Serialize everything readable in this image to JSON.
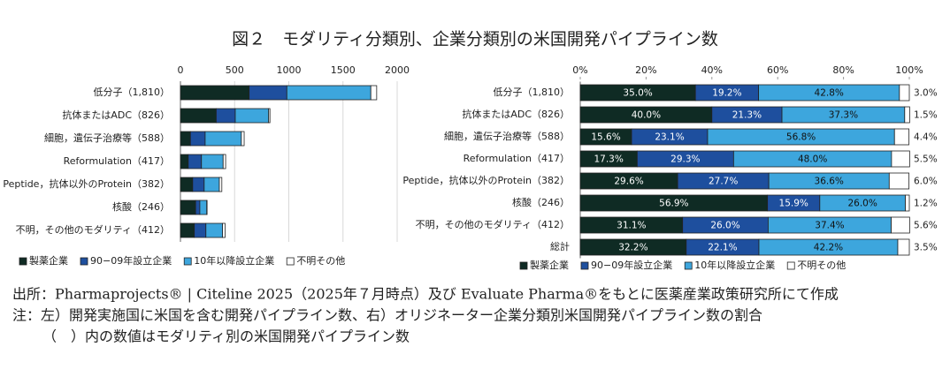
{
  "title": "図２　モダリティ分類別、企業分類別の米国開発パイプライン数",
  "source": "出所：Pharmaprojects® | Citeline 2025（2025年７月時点）及び Evaluate Pharma®をもとに医薬産業政策研究所にて作成",
  "notes": [
    "注：左）開発実施国に米国を含む開発パイプライン数、右）オリジネーター企業分類別米国開発パイプライン数の割合",
    "（　）内の数値はモダリティ別の米国開発パイプライン数"
  ],
  "chart_data": [
    {
      "type": "bar",
      "orientation": "horizontal",
      "stacked": true,
      "grid": true,
      "legend": "bottom",
      "categories": [
        "低分子（1,810）",
        "抗体またはADC（826）",
        "細胞，遺伝子治療等（588）",
        "Reformulation（417）",
        "Peptide，抗体以外のProtein（382）",
        "核酸（246）",
        "不明，その他のモダリティ（412）"
      ],
      "xlim": [
        0,
        2000
      ],
      "xticks": [
        0,
        500,
        1000,
        1500,
        2000
      ],
      "series": [
        {
          "name": "製薬企業",
          "color": "#0f2b24",
          "values": [
            634,
            330,
            92,
            72,
            113,
            140,
            128
          ]
        },
        {
          "name": "90−09年設立企業",
          "color": "#1e4f9e",
          "values": [
            348,
            176,
            136,
            122,
            106,
            39,
            107
          ]
        },
        {
          "name": "10年以降設立企業",
          "color": "#3da6dd",
          "values": [
            775,
            308,
            334,
            200,
            140,
            64,
            154
          ]
        },
        {
          "name": "不明その他",
          "color": "#ffffff",
          "values": [
            54,
            12,
            26,
            23,
            23,
            3,
            23
          ]
        }
      ]
    },
    {
      "type": "bar",
      "orientation": "horizontal",
      "stacked": true,
      "grid": false,
      "legend": "bottom",
      "categories": [
        "低分子（1,810）",
        "抗体またはADC（826）",
        "細胞，遺伝子治療等（588）",
        "Reformulation（417）",
        "Peptide，抗体以外のProtein（382）",
        "核酸（246）",
        "不明，その他のモダリティ（412）",
        "総計"
      ],
      "xlim": [
        0,
        100
      ],
      "xticks": [
        {
          "value": 0,
          "label": "0%"
        },
        {
          "value": 20,
          "label": "20%"
        },
        {
          "value": 40,
          "label": "40%"
        },
        {
          "value": 60,
          "label": "60%"
        },
        {
          "value": 80,
          "label": "80%"
        },
        {
          "value": 100,
          "label": "100%"
        }
      ],
      "series": [
        {
          "name": "製薬企業",
          "color": "#0f2b24",
          "values": [
            35.0,
            40.0,
            15.6,
            17.3,
            29.6,
            56.9,
            31.1,
            32.2
          ],
          "value_labels": [
            "35.0%",
            "40.0%",
            "15.6%",
            "17.3%",
            "29.6%",
            "56.9%",
            "31.1%",
            "32.2%"
          ]
        },
        {
          "name": "90−09年設立企業",
          "color": "#1e4f9e",
          "values": [
            19.2,
            21.3,
            23.1,
            29.3,
            27.7,
            15.9,
            26.0,
            22.1
          ],
          "value_labels": [
            "19.2%",
            "21.3%",
            "23.1%",
            "29.3%",
            "27.7%",
            "15.9%",
            "26.0%",
            "22.1%"
          ]
        },
        {
          "name": "10年以降設立企業",
          "color": "#3da6dd",
          "values": [
            42.8,
            37.3,
            56.8,
            48.0,
            36.6,
            26.0,
            37.4,
            42.2
          ],
          "value_labels": [
            "42.8%",
            "37.3%",
            "56.8%",
            "48.0%",
            "36.6%",
            "26.0%",
            "37.4%",
            "42.2%"
          ]
        },
        {
          "name": "不明その他",
          "color": "#ffffff",
          "values": [
            3.0,
            1.5,
            4.4,
            5.5,
            6.0,
            1.2,
            5.6,
            3.5
          ],
          "value_labels": [
            "3.0%",
            "1.5%",
            "4.4%",
            "5.5%",
            "6.0%",
            "1.2%",
            "5.6%",
            "3.5%"
          ]
        }
      ]
    }
  ]
}
